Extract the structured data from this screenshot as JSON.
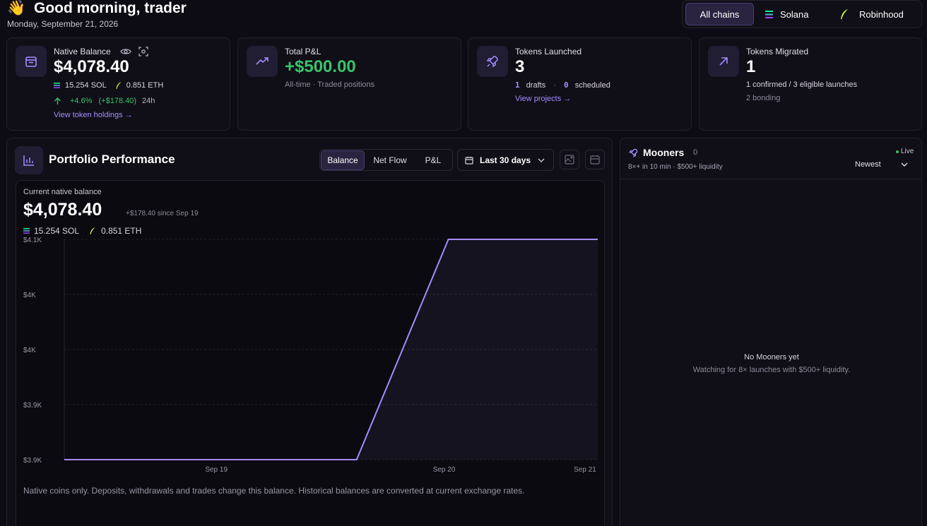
{
  "header": {
    "greeting_emoji": "👋",
    "greeting": "Good morning, trader",
    "date": "Monday, September 21, 2026"
  },
  "chain_filter": {
    "all": "All chains",
    "solana": "Solana",
    "robinhood": "Robinhood",
    "selected": "All chains"
  },
  "native_balance": {
    "label": "Native Balance",
    "value": "$4,078.40",
    "sol": "15.254 SOL",
    "eth": "0.851 ETH",
    "change_pct": "+4.6%",
    "change_abs": "(+$178.40)",
    "period": "24h",
    "link": "View token holdings →"
  },
  "total_pnl": {
    "label": "Total P&L",
    "value": "+$500.00",
    "sub": "All-time · Traded positions"
  },
  "tokens_launched": {
    "label": "Tokens Launched",
    "value": "3",
    "drafts_count": "1",
    "drafts_label": "drafts",
    "dot": "·",
    "scheduled_count": "0",
    "scheduled_label": "scheduled",
    "link": "View projects →"
  },
  "tokens_migrated": {
    "label": "Tokens Migrated",
    "value": "1",
    "sub1": "1 confirmed / 3 eligible launches",
    "sub2": "2 bonding"
  },
  "performance": {
    "title": "Portfolio Performance",
    "tabs": [
      "Balance",
      "Net Flow",
      "P&L"
    ],
    "active_tab": "Balance",
    "range": "Last 30 days",
    "current_label": "Current native balance",
    "current_value": "$4,078.40",
    "since": "+$178.40 since Sep 19",
    "sol": "15.254 SOL",
    "eth": "0.851 ETH",
    "footnote": "Native coins only. Deposits, withdrawals and trades change this balance. Historical balances are converted at current exchange rates."
  },
  "chart_data": {
    "type": "line",
    "x": [
      "Sep 19 (start)",
      "Sep 19",
      "Sep 20 (early)",
      "Sep 20",
      "Sep 21"
    ],
    "x_ticks": [
      "Sep 19",
      "Sep 20",
      "Sep 21"
    ],
    "y_ticks": [
      "$4.1K",
      "$4K",
      "$4K",
      "$3.9K",
      "$3.9K"
    ],
    "series": [
      {
        "values": [
          3900,
          3900,
          3900,
          4078.4,
          4078.4
        ]
      }
    ],
    "ylim": [
      3900,
      4078.4
    ],
    "grid": true,
    "line_color": "#a48cff"
  },
  "mooners": {
    "title": "Mooners",
    "count": "0",
    "sub": "8×+ in 10 min · $500+ liquidity",
    "live": "Live",
    "sort": "Newest",
    "empty_title": "No Mooners yet",
    "empty_sub": "Watching for 8× launches with $500+ liquidity."
  }
}
